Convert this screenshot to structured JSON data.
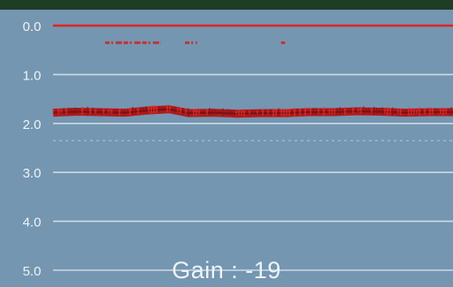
{
  "chart_data": {
    "type": "line",
    "y_axis": {
      "range": [
        0.0,
        5.0
      ],
      "direction": "downward",
      "tick_labels": [
        "0.0",
        "1.0",
        "2.0",
        "3.0",
        "4.0",
        "5.0"
      ],
      "grid": true,
      "minor_dashed_at": [
        2.35
      ]
    },
    "series": [
      {
        "color": "#e32222",
        "style": "solid",
        "x": [
          0,
          100
        ],
        "y": [
          0.0,
          0.0
        ]
      },
      {
        "color": "#d82020",
        "style": "sparse",
        "segments": [
          [
            13,
            27
          ],
          [
            33,
            36
          ],
          [
            57,
            58
          ]
        ],
        "y": 0.35
      },
      {
        "color": "#c81616",
        "style": "noisy",
        "points": [
          [
            0,
            1.78
          ],
          [
            6,
            1.76
          ],
          [
            12,
            1.77
          ],
          [
            18,
            1.78
          ],
          [
            23,
            1.74
          ],
          [
            29,
            1.71
          ],
          [
            34,
            1.79
          ],
          [
            40,
            1.78
          ],
          [
            46,
            1.8
          ],
          [
            52,
            1.79
          ],
          [
            58,
            1.79
          ],
          [
            64,
            1.77
          ],
          [
            70,
            1.77
          ],
          [
            76,
            1.75
          ],
          [
            82,
            1.76
          ],
          [
            88,
            1.78
          ],
          [
            94,
            1.77
          ],
          [
            100,
            1.77
          ]
        ]
      }
    ],
    "x_range": [
      0,
      100
    ]
  },
  "overlay": {
    "gain_text": "Gain : -19"
  },
  "colors": {
    "background": "#7496b0",
    "top_bar": "#1f3d22",
    "tick_text": "#eef3f7",
    "grid": "#dbe6ee"
  }
}
